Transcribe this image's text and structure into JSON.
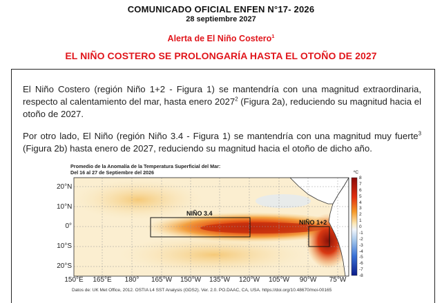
{
  "header": {
    "title": "COMUNICADO OFICIAL ENFEN N°17- 2026",
    "date": "28 septiembre 2027",
    "alert": "Alerta de El Niño Costero",
    "alert_note": "1",
    "headline": "EL NIÑO COSTERO SE PROLONGARÍA HASTA EL OTOÑO DE 2027"
  },
  "body": {
    "p1_a": "El Niño Costero (región Niño 1+2 - Figura 1) se mantendría con una magnitud extraordinaria, respecto al calentamiento del mar, hasta enero 2027",
    "p1_note": "2",
    "p1_b": " (Figura 2a), reduciendo su magnitud hacia el otoño de 2027.",
    "p2_a": "Por otro lado, El Niño (región Niño 3.4 - Figura 1) se mantendría con una magnitud muy fuerte",
    "p2_note": "3",
    "p2_b": " (Figura 2b) hasta enero de 2027, reduciendo su magnitud hacia el otoño de dicho año."
  },
  "figure": {
    "title_line1": "Promedio de la Anomalía de la Temperatura Superficial del Mar:",
    "title_line2": "Del 16 al 27 de Septiembre del 2026",
    "region_nino34": "NIÑO 3.4",
    "region_nino12": "NIÑO 1+2",
    "unit": "ºC",
    "y_ticks": [
      "20°N",
      "10°N",
      "0°",
      "10°S",
      "20°S"
    ],
    "x_ticks": [
      "150°E",
      "165°E",
      "180°",
      "165°W",
      "150°W",
      "135°W",
      "120°W",
      "105°W",
      "90°W",
      "75°W"
    ],
    "colorbar_ticks": [
      "8",
      "7",
      "6",
      "5",
      "4",
      "3",
      "2",
      "1",
      "0",
      "-1",
      "-2",
      "-3",
      "-4",
      "-5",
      "-6",
      "-7",
      "-8"
    ],
    "source": "Datos de: UK Met Office, 2012. OSTIA L4 SST Analysis (GDS2). Ver. 2.0. PO.DAAC, CA, USA. https://doi.org/10.48670/moi-00165"
  }
}
